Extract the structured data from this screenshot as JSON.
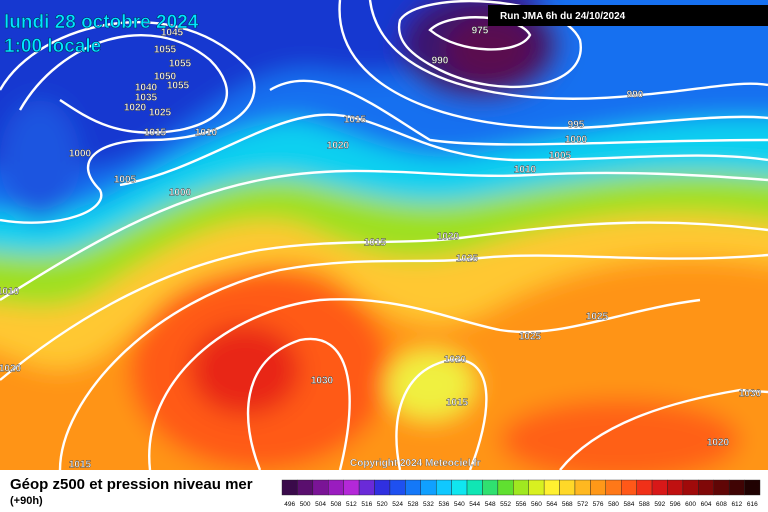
{
  "header": {
    "title": "lundi 28 octobre 2024",
    "time": "1:00 locale",
    "run": "Run JMA 6h du 24/10/2024"
  },
  "copyright": "Copyright 2024 Meteociel.fr",
  "footer": {
    "title": "Géop z500 et pression niveau mer",
    "lead": "(+90h)"
  },
  "isobar_labels": [
    "1045",
    "1055",
    "1055",
    "1050",
    "1055",
    "1040",
    "1035",
    "1025",
    "1020",
    "1015",
    "1010",
    "1000",
    "1005",
    "1000",
    "1015",
    "1020",
    "990",
    "975",
    "990",
    "995",
    "1000",
    "1005",
    "1010",
    "1015",
    "1020",
    "1025",
    "1025",
    "1025",
    "1020",
    "1030",
    "1015",
    "1030",
    "1020",
    "1015",
    "1010",
    "1020"
  ],
  "scale": {
    "values": [
      496,
      500,
      504,
      508,
      512,
      516,
      520,
      524,
      528,
      532,
      536,
      540,
      544,
      548,
      552,
      556,
      560,
      564,
      568,
      572,
      576,
      580,
      584,
      588,
      592,
      596,
      600,
      604,
      608,
      612,
      616
    ],
    "colors": [
      "#3a0a4a",
      "#5a0f6e",
      "#7a1496",
      "#9a1cbf",
      "#b428d8",
      "#6a2ad8",
      "#3030e0",
      "#1e50f0",
      "#1478f8",
      "#10a0ff",
      "#10c8ff",
      "#10e6f0",
      "#10e6b4",
      "#30e070",
      "#60e030",
      "#a0e820",
      "#d8f020",
      "#fff030",
      "#ffd828",
      "#ffb820",
      "#ff9818",
      "#ff7818",
      "#ff5818",
      "#f03018",
      "#d81818",
      "#c01010",
      "#a00a0a",
      "#800808",
      "#600606",
      "#400404",
      "#200202"
    ]
  }
}
